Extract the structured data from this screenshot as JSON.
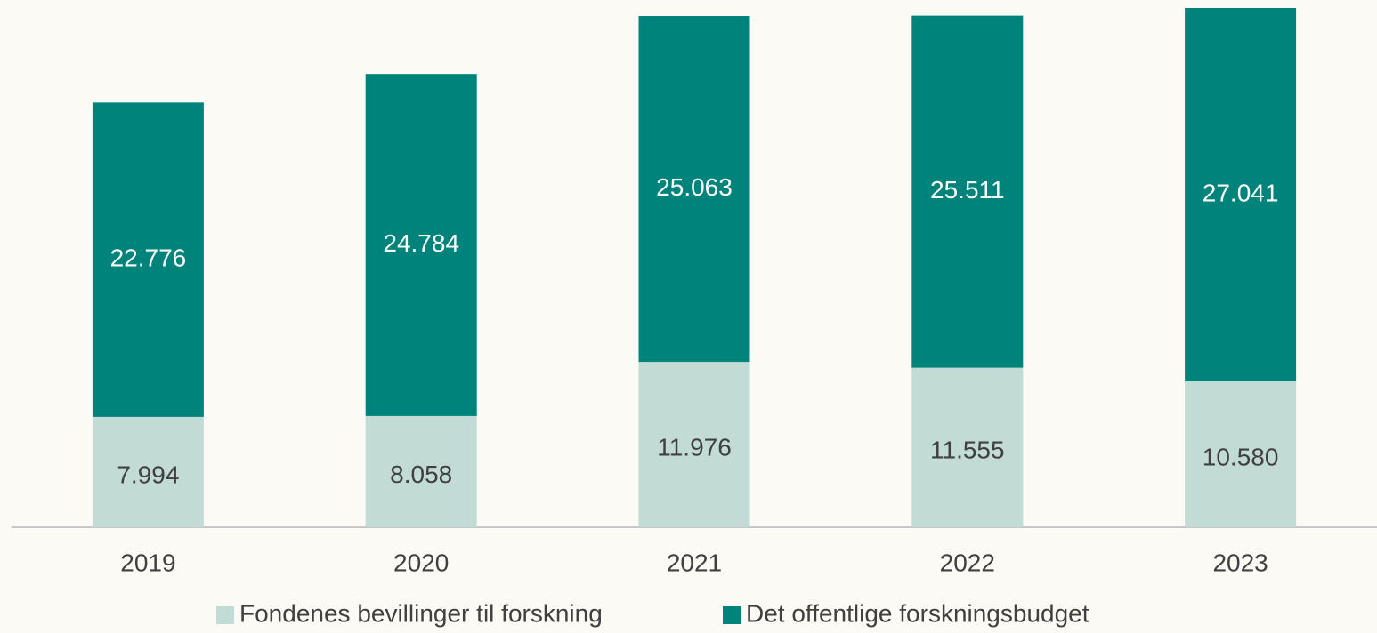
{
  "chart_data": {
    "type": "stacked_bar",
    "categories": [
      "2019",
      "2020",
      "2021",
      "2022",
      "2023"
    ],
    "series": [
      {
        "name": "Fondenes bevillinger til forskning",
        "color": "#c2dbd5",
        "values": [
          7994,
          8058,
          11976,
          11555,
          10580
        ],
        "value_labels": [
          "7.994",
          "8.058",
          "11.976",
          "11.555",
          "10.580"
        ]
      },
      {
        "name": "Det offentlige forskningsbudget",
        "color": "#00837a",
        "values": [
          22776,
          24784,
          25063,
          25511,
          27041
        ],
        "value_labels": [
          "22.776",
          "24.784",
          "25.063",
          "25.511",
          "27.041"
        ]
      }
    ],
    "legend": "bottom"
  }
}
